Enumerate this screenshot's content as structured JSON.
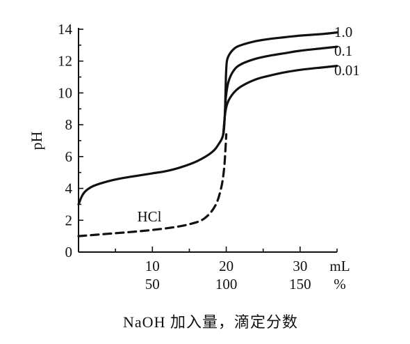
{
  "chart_data": {
    "type": "line",
    "title": "",
    "xlabel": "NaOH 加入量，滴定分数",
    "ylabel": "pH",
    "x_unit_ml": "mL",
    "x_unit_percent": "%",
    "xlim": [
      0,
      35
    ],
    "ylim": [
      0,
      14
    ],
    "y_ticks": [
      0,
      2,
      4,
      6,
      8,
      10,
      12,
      14
    ],
    "x_ticks_ml": [
      {
        "value": 10,
        "label": "10"
      },
      {
        "value": 20,
        "label": "20"
      },
      {
        "value": 30,
        "label": "30"
      }
    ],
    "x_ticks_percent": [
      {
        "value": 10,
        "label": "50"
      },
      {
        "value": 20,
        "label": "100"
      },
      {
        "value": 30,
        "label": "150"
      }
    ],
    "series": [
      {
        "name": "1.0",
        "style": "solid",
        "points": [
          [
            0,
            3.0
          ],
          [
            0.5,
            3.55
          ],
          [
            1,
            3.85
          ],
          [
            2,
            4.15
          ],
          [
            4,
            4.45
          ],
          [
            6,
            4.65
          ],
          [
            8,
            4.8
          ],
          [
            10,
            4.95
          ],
          [
            12,
            5.1
          ],
          [
            14,
            5.35
          ],
          [
            16,
            5.7
          ],
          [
            18,
            6.25
          ],
          [
            19,
            6.8
          ],
          [
            19.6,
            7.4
          ],
          [
            19.8,
            8.5
          ],
          [
            19.9,
            10.0
          ],
          [
            20.0,
            11.5
          ],
          [
            20.2,
            12.2
          ],
          [
            21,
            12.75
          ],
          [
            22,
            13.0
          ],
          [
            24,
            13.25
          ],
          [
            26,
            13.4
          ],
          [
            28,
            13.5
          ],
          [
            30,
            13.6
          ],
          [
            33,
            13.7
          ],
          [
            35,
            13.8
          ]
        ]
      },
      {
        "name": "0.1",
        "style": "solid",
        "points": [
          [
            19.6,
            7.4
          ],
          [
            19.8,
            8.5
          ],
          [
            19.95,
            9.7
          ],
          [
            20.3,
            10.7
          ],
          [
            21,
            11.4
          ],
          [
            22,
            11.8
          ],
          [
            24,
            12.15
          ],
          [
            26,
            12.35
          ],
          [
            28,
            12.5
          ],
          [
            30,
            12.65
          ],
          [
            33,
            12.8
          ],
          [
            35,
            12.9
          ]
        ]
      },
      {
        "name": "0.01",
        "style": "solid",
        "points": [
          [
            19.6,
            7.4
          ],
          [
            19.85,
            8.7
          ],
          [
            20.2,
            9.4
          ],
          [
            21,
            10.0
          ],
          [
            22,
            10.4
          ],
          [
            24,
            10.85
          ],
          [
            26,
            11.1
          ],
          [
            28,
            11.3
          ],
          [
            30,
            11.45
          ],
          [
            33,
            11.6
          ],
          [
            35,
            11.7
          ]
        ]
      },
      {
        "name": "HCl",
        "style": "dashed",
        "points": [
          [
            0,
            1.0
          ],
          [
            4,
            1.15
          ],
          [
            8,
            1.3
          ],
          [
            12,
            1.5
          ],
          [
            15,
            1.75
          ],
          [
            17,
            2.1
          ],
          [
            18.5,
            2.9
          ],
          [
            19.3,
            4.0
          ],
          [
            19.7,
            5.2
          ],
          [
            19.9,
            6.5
          ],
          [
            20.0,
            7.4
          ]
        ]
      }
    ]
  }
}
